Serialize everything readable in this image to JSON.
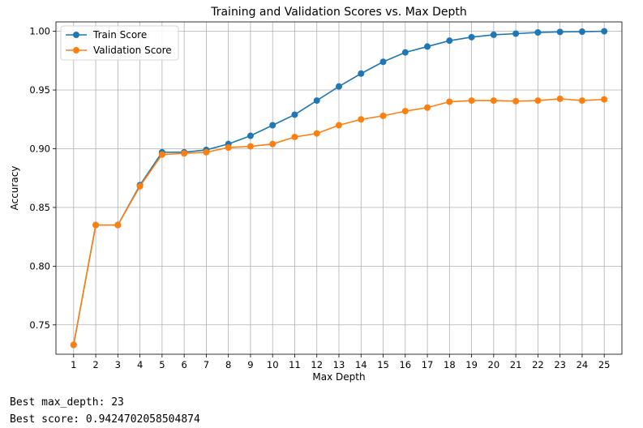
{
  "chart_data": {
    "type": "line",
    "title": "Training and Validation Scores vs. Max Depth",
    "xlabel": "Max Depth",
    "ylabel": "Accuracy",
    "x": [
      1,
      2,
      3,
      4,
      5,
      6,
      7,
      8,
      9,
      10,
      11,
      12,
      13,
      14,
      15,
      16,
      17,
      18,
      19,
      20,
      21,
      22,
      23,
      24,
      25
    ],
    "xlim": [
      0.2,
      25.8
    ],
    "ylim": [
      0.725,
      1.008
    ],
    "yticks": [
      "0.75",
      "0.80",
      "0.85",
      "0.90",
      "0.95",
      "1.00"
    ],
    "grid": true,
    "legend_position": "top-left",
    "series": [
      {
        "name": "Train Score",
        "color": "#1f77b4",
        "marker": "circle",
        "values": [
          0.733,
          0.835,
          0.835,
          0.869,
          0.897,
          0.897,
          0.899,
          0.904,
          0.911,
          0.92,
          0.929,
          0.941,
          0.953,
          0.964,
          0.974,
          0.982,
          0.987,
          0.992,
          0.995,
          0.997,
          0.998,
          0.999,
          0.9995,
          0.9997,
          1.0
        ]
      },
      {
        "name": "Validation Score",
        "color": "#ff7f0e",
        "marker": "circle",
        "values": [
          0.733,
          0.835,
          0.835,
          0.868,
          0.895,
          0.896,
          0.897,
          0.901,
          0.902,
          0.904,
          0.91,
          0.913,
          0.92,
          0.925,
          0.928,
          0.932,
          0.935,
          0.94,
          0.941,
          0.941,
          0.9405,
          0.941,
          0.9425,
          0.941,
          0.942
        ]
      }
    ]
  },
  "output": {
    "line1": "Best max_depth: 23",
    "line2": "Best score: 0.9424702058504874"
  }
}
